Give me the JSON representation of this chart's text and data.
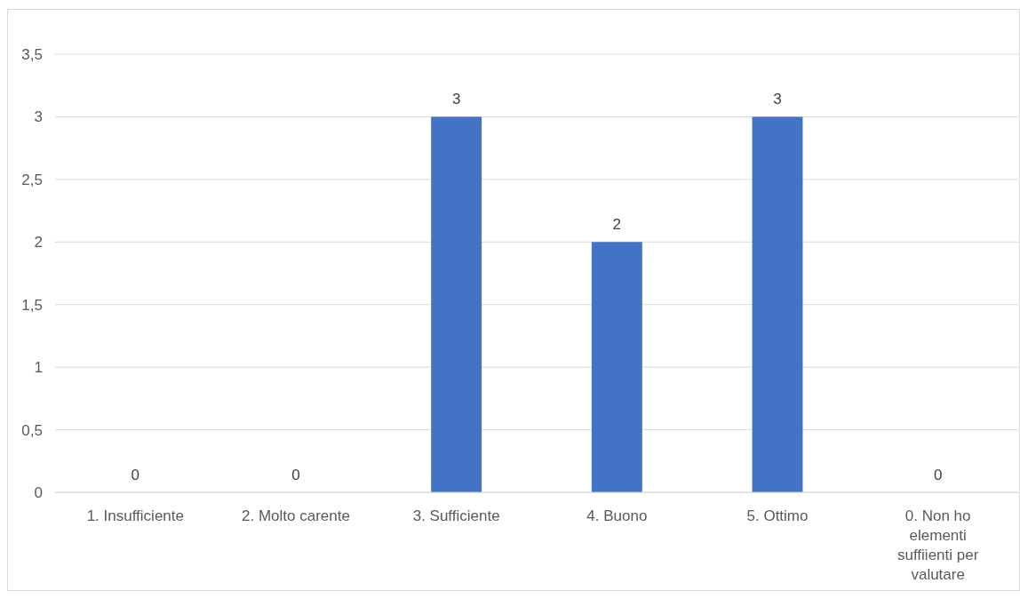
{
  "chart_data": {
    "type": "bar",
    "categories": [
      "1. Insufficiente",
      "2. Molto carente",
      "3. Sufficiente",
      "4. Buono",
      "5. Ottimo",
      "0. Non ho elementi suffiienti per valutare"
    ],
    "values": [
      0,
      0,
      3,
      2,
      3,
      0
    ],
    "color": "#4472c4",
    "ylim": [
      0,
      3.5
    ],
    "yticks": [
      0,
      {
        "value": 0.5,
        "label": "0,5"
      },
      1,
      {
        "value": 1.5,
        "label": "1,5"
      },
      2,
      {
        "value": 2.5,
        "label": "2,5"
      },
      3,
      {
        "value": 3.5,
        "label": "3,5"
      }
    ],
    "grid": "y",
    "data_labels": true
  }
}
